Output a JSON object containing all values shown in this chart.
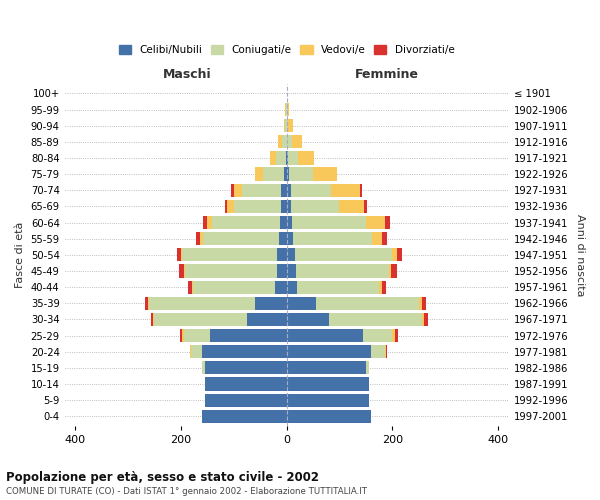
{
  "age_groups": [
    "0-4",
    "5-9",
    "10-14",
    "15-19",
    "20-24",
    "25-29",
    "30-34",
    "35-39",
    "40-44",
    "45-49",
    "50-54",
    "55-59",
    "60-64",
    "65-69",
    "70-74",
    "75-79",
    "80-84",
    "85-89",
    "90-94",
    "95-99",
    "100+"
  ],
  "birth_years": [
    "1997-2001",
    "1992-1996",
    "1987-1991",
    "1982-1986",
    "1977-1981",
    "1972-1976",
    "1967-1971",
    "1962-1966",
    "1957-1961",
    "1952-1956",
    "1947-1951",
    "1942-1946",
    "1937-1941",
    "1932-1936",
    "1927-1931",
    "1922-1926",
    "1917-1921",
    "1912-1916",
    "1907-1911",
    "1902-1906",
    "≤ 1901"
  ],
  "maschi": {
    "celibi": [
      160,
      155,
      155,
      155,
      160,
      145,
      75,
      60,
      22,
      18,
      18,
      14,
      12,
      10,
      10,
      5,
      2,
      0,
      0,
      0,
      0
    ],
    "coniugati": [
      0,
      0,
      0,
      5,
      20,
      50,
      175,
      200,
      155,
      175,
      180,
      145,
      130,
      90,
      75,
      40,
      18,
      8,
      3,
      2,
      0
    ],
    "vedovi": [
      0,
      0,
      0,
      0,
      2,
      2,
      2,
      2,
      2,
      2,
      2,
      5,
      8,
      12,
      15,
      15,
      12,
      8,
      3,
      2,
      0
    ],
    "divorziati": [
      0,
      0,
      0,
      0,
      0,
      5,
      5,
      5,
      8,
      8,
      8,
      8,
      8,
      5,
      5,
      0,
      0,
      0,
      0,
      0,
      0
    ]
  },
  "femmine": {
    "nubili": [
      160,
      155,
      155,
      150,
      160,
      145,
      80,
      55,
      20,
      18,
      15,
      12,
      10,
      8,
      8,
      5,
      2,
      0,
      0,
      0,
      0
    ],
    "coniugate": [
      0,
      0,
      0,
      5,
      25,
      55,
      175,
      195,
      155,
      175,
      185,
      150,
      140,
      90,
      75,
      45,
      20,
      10,
      3,
      2,
      0
    ],
    "vedove": [
      0,
      0,
      0,
      0,
      2,
      5,
      5,
      5,
      5,
      5,
      8,
      18,
      35,
      48,
      55,
      45,
      30,
      18,
      8,
      2,
      0
    ],
    "divorziate": [
      0,
      0,
      0,
      0,
      2,
      5,
      8,
      8,
      8,
      10,
      10,
      10,
      10,
      5,
      5,
      0,
      0,
      0,
      0,
      0,
      0
    ]
  },
  "colors": {
    "celibi": "#4472a8",
    "coniugati": "#c8d9a5",
    "vedovi": "#f9c85a",
    "divorziati": "#d93030"
  },
  "xlim": 420,
  "title": "Popolazione per età, sesso e stato civile - 2002",
  "subtitle": "COMUNE DI TURATE (CO) - Dati ISTAT 1° gennaio 2002 - Elaborazione TUTTITALIA.IT",
  "ylabel_left": "Fasce di età",
  "ylabel_right": "Anni di nascita",
  "xlabel_left": "Maschi",
  "xlabel_right": "Femmine",
  "legend_labels": [
    "Celibi/Nubili",
    "Coniugati/e",
    "Vedovi/e",
    "Divorziati/e"
  ]
}
